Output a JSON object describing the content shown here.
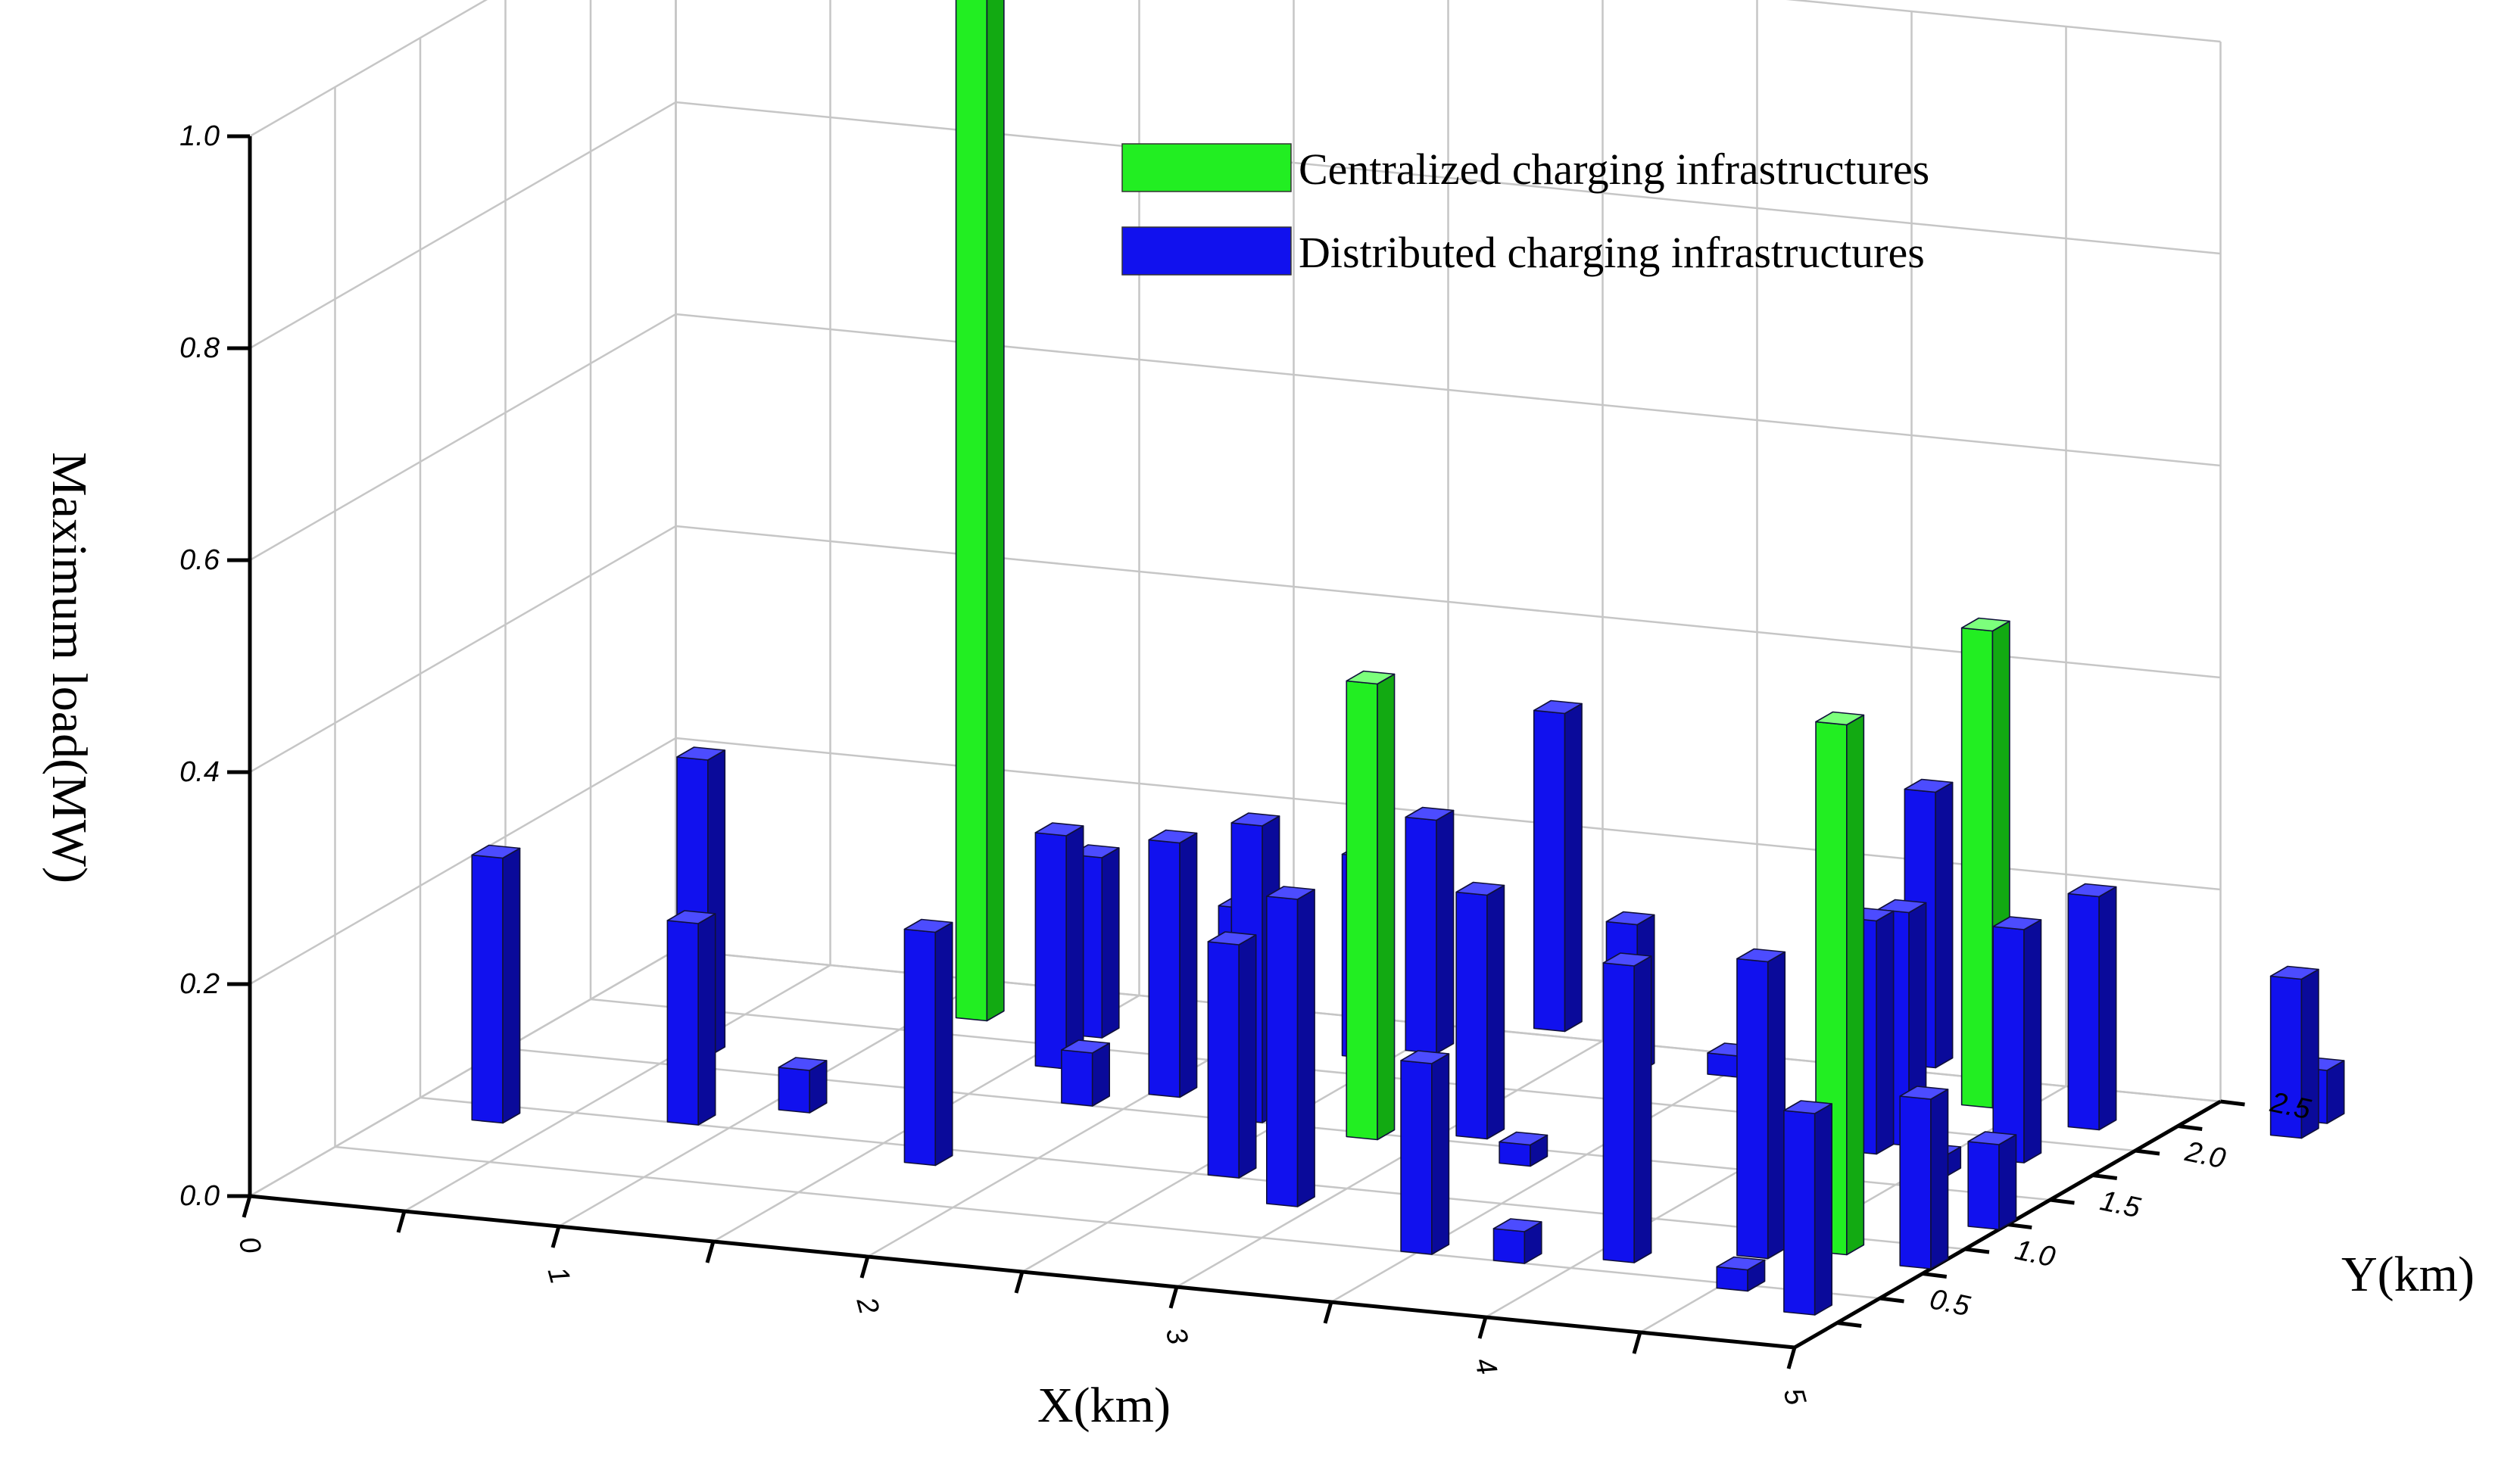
{
  "chart_data": {
    "type": "bar3d",
    "xlabel": "X(km)",
    "ylabel": "Y(km)",
    "zlabel": "Maximum load(MW)",
    "xlim": [
      0,
      5
    ],
    "ylim": [
      0,
      2.5
    ],
    "zlim": [
      0,
      1.0
    ],
    "x_ticks": [
      "0",
      "1",
      "2",
      "3",
      "4",
      "5"
    ],
    "y_ticks": [
      "0.5",
      "1.0",
      "1.5",
      "2.0",
      "2.5"
    ],
    "z_ticks": [
      "0.0",
      "0.2",
      "0.4",
      "0.6",
      "0.8",
      "1.0"
    ],
    "grid": true,
    "legend_position": "top-right",
    "series": [
      {
        "name": "Centralized charging infrastructures",
        "color": "#22ee22",
        "points": [
          {
            "x": 1.15,
            "y": 2.2,
            "z": 0.99
          },
          {
            "x": 2.8,
            "y": 1.5,
            "z": 0.43
          },
          {
            "x": 4.35,
            "y": 2.3,
            "z": 0.45
          },
          {
            "x": 4.65,
            "y": 0.9,
            "z": 0.5
          }
        ]
      },
      {
        "name": "Distributed charging infrastructures",
        "color": "#1111ee",
        "points": [
          {
            "x": 0.3,
            "y": 0.9,
            "z": 0.25
          },
          {
            "x": 0.55,
            "y": 1.65,
            "z": 0.28
          },
          {
            "x": 0.85,
            "y": 1.05,
            "z": 0.19
          },
          {
            "x": 1.1,
            "y": 1.25,
            "z": 0.04
          },
          {
            "x": 1.55,
            "y": 2.15,
            "z": 0.17
          },
          {
            "x": 1.6,
            "y": 1.85,
            "z": 0.22
          },
          {
            "x": 1.7,
            "y": 0.9,
            "z": 0.22
          },
          {
            "x": 1.85,
            "y": 1.55,
            "z": 0.05
          },
          {
            "x": 2.0,
            "y": 2.2,
            "z": 0.13
          },
          {
            "x": 2.05,
            "y": 1.7,
            "z": 0.24
          },
          {
            "x": 2.4,
            "y": 2.2,
            "z": 0.19
          },
          {
            "x": 2.4,
            "y": 1.55,
            "z": 0.28
          },
          {
            "x": 2.55,
            "y": 2.3,
            "z": 0.22
          },
          {
            "x": 2.6,
            "y": 1.05,
            "z": 0.22
          },
          {
            "x": 2.8,
            "y": 2.6,
            "z": 0.3
          },
          {
            "x": 2.9,
            "y": 0.85,
            "z": 0.29
          },
          {
            "x": 3.1,
            "y": 1.6,
            "z": 0.23
          },
          {
            "x": 3.2,
            "y": 2.3,
            "z": 0.14
          },
          {
            "x": 3.35,
            "y": 1.4,
            "z": 0.02
          },
          {
            "x": 3.5,
            "y": 2.35,
            "z": 0.02
          },
          {
            "x": 3.5,
            "y": 0.55,
            "z": 0.18
          },
          {
            "x": 3.8,
            "y": 0.55,
            "z": 0.03
          },
          {
            "x": 4.0,
            "y": 2.6,
            "z": 0.26
          },
          {
            "x": 4.1,
            "y": 0.65,
            "z": 0.28
          },
          {
            "x": 4.25,
            "y": 1.8,
            "z": 0.22
          },
          {
            "x": 4.3,
            "y": 1.9,
            "z": 0.22
          },
          {
            "x": 4.45,
            "y": 0.8,
            "z": 0.28
          },
          {
            "x": 4.55,
            "y": 1.65,
            "z": 0.02
          },
          {
            "x": 4.55,
            "y": 0.5,
            "z": 0.02
          },
          {
            "x": 4.7,
            "y": 1.85,
            "z": 0.22
          },
          {
            "x": 4.75,
            "y": 2.2,
            "z": 0.22
          },
          {
            "x": 4.85,
            "y": 0.35,
            "z": 0.19
          },
          {
            "x": 4.95,
            "y": 1.25,
            "z": 0.08
          },
          {
            "x": 4.95,
            "y": 0.85,
            "z": 0.16
          },
          {
            "x": 5.35,
            "y": 2.3,
            "z": 0.15
          },
          {
            "x": 5.35,
            "y": 2.45,
            "z": 0.05
          }
        ]
      }
    ]
  }
}
